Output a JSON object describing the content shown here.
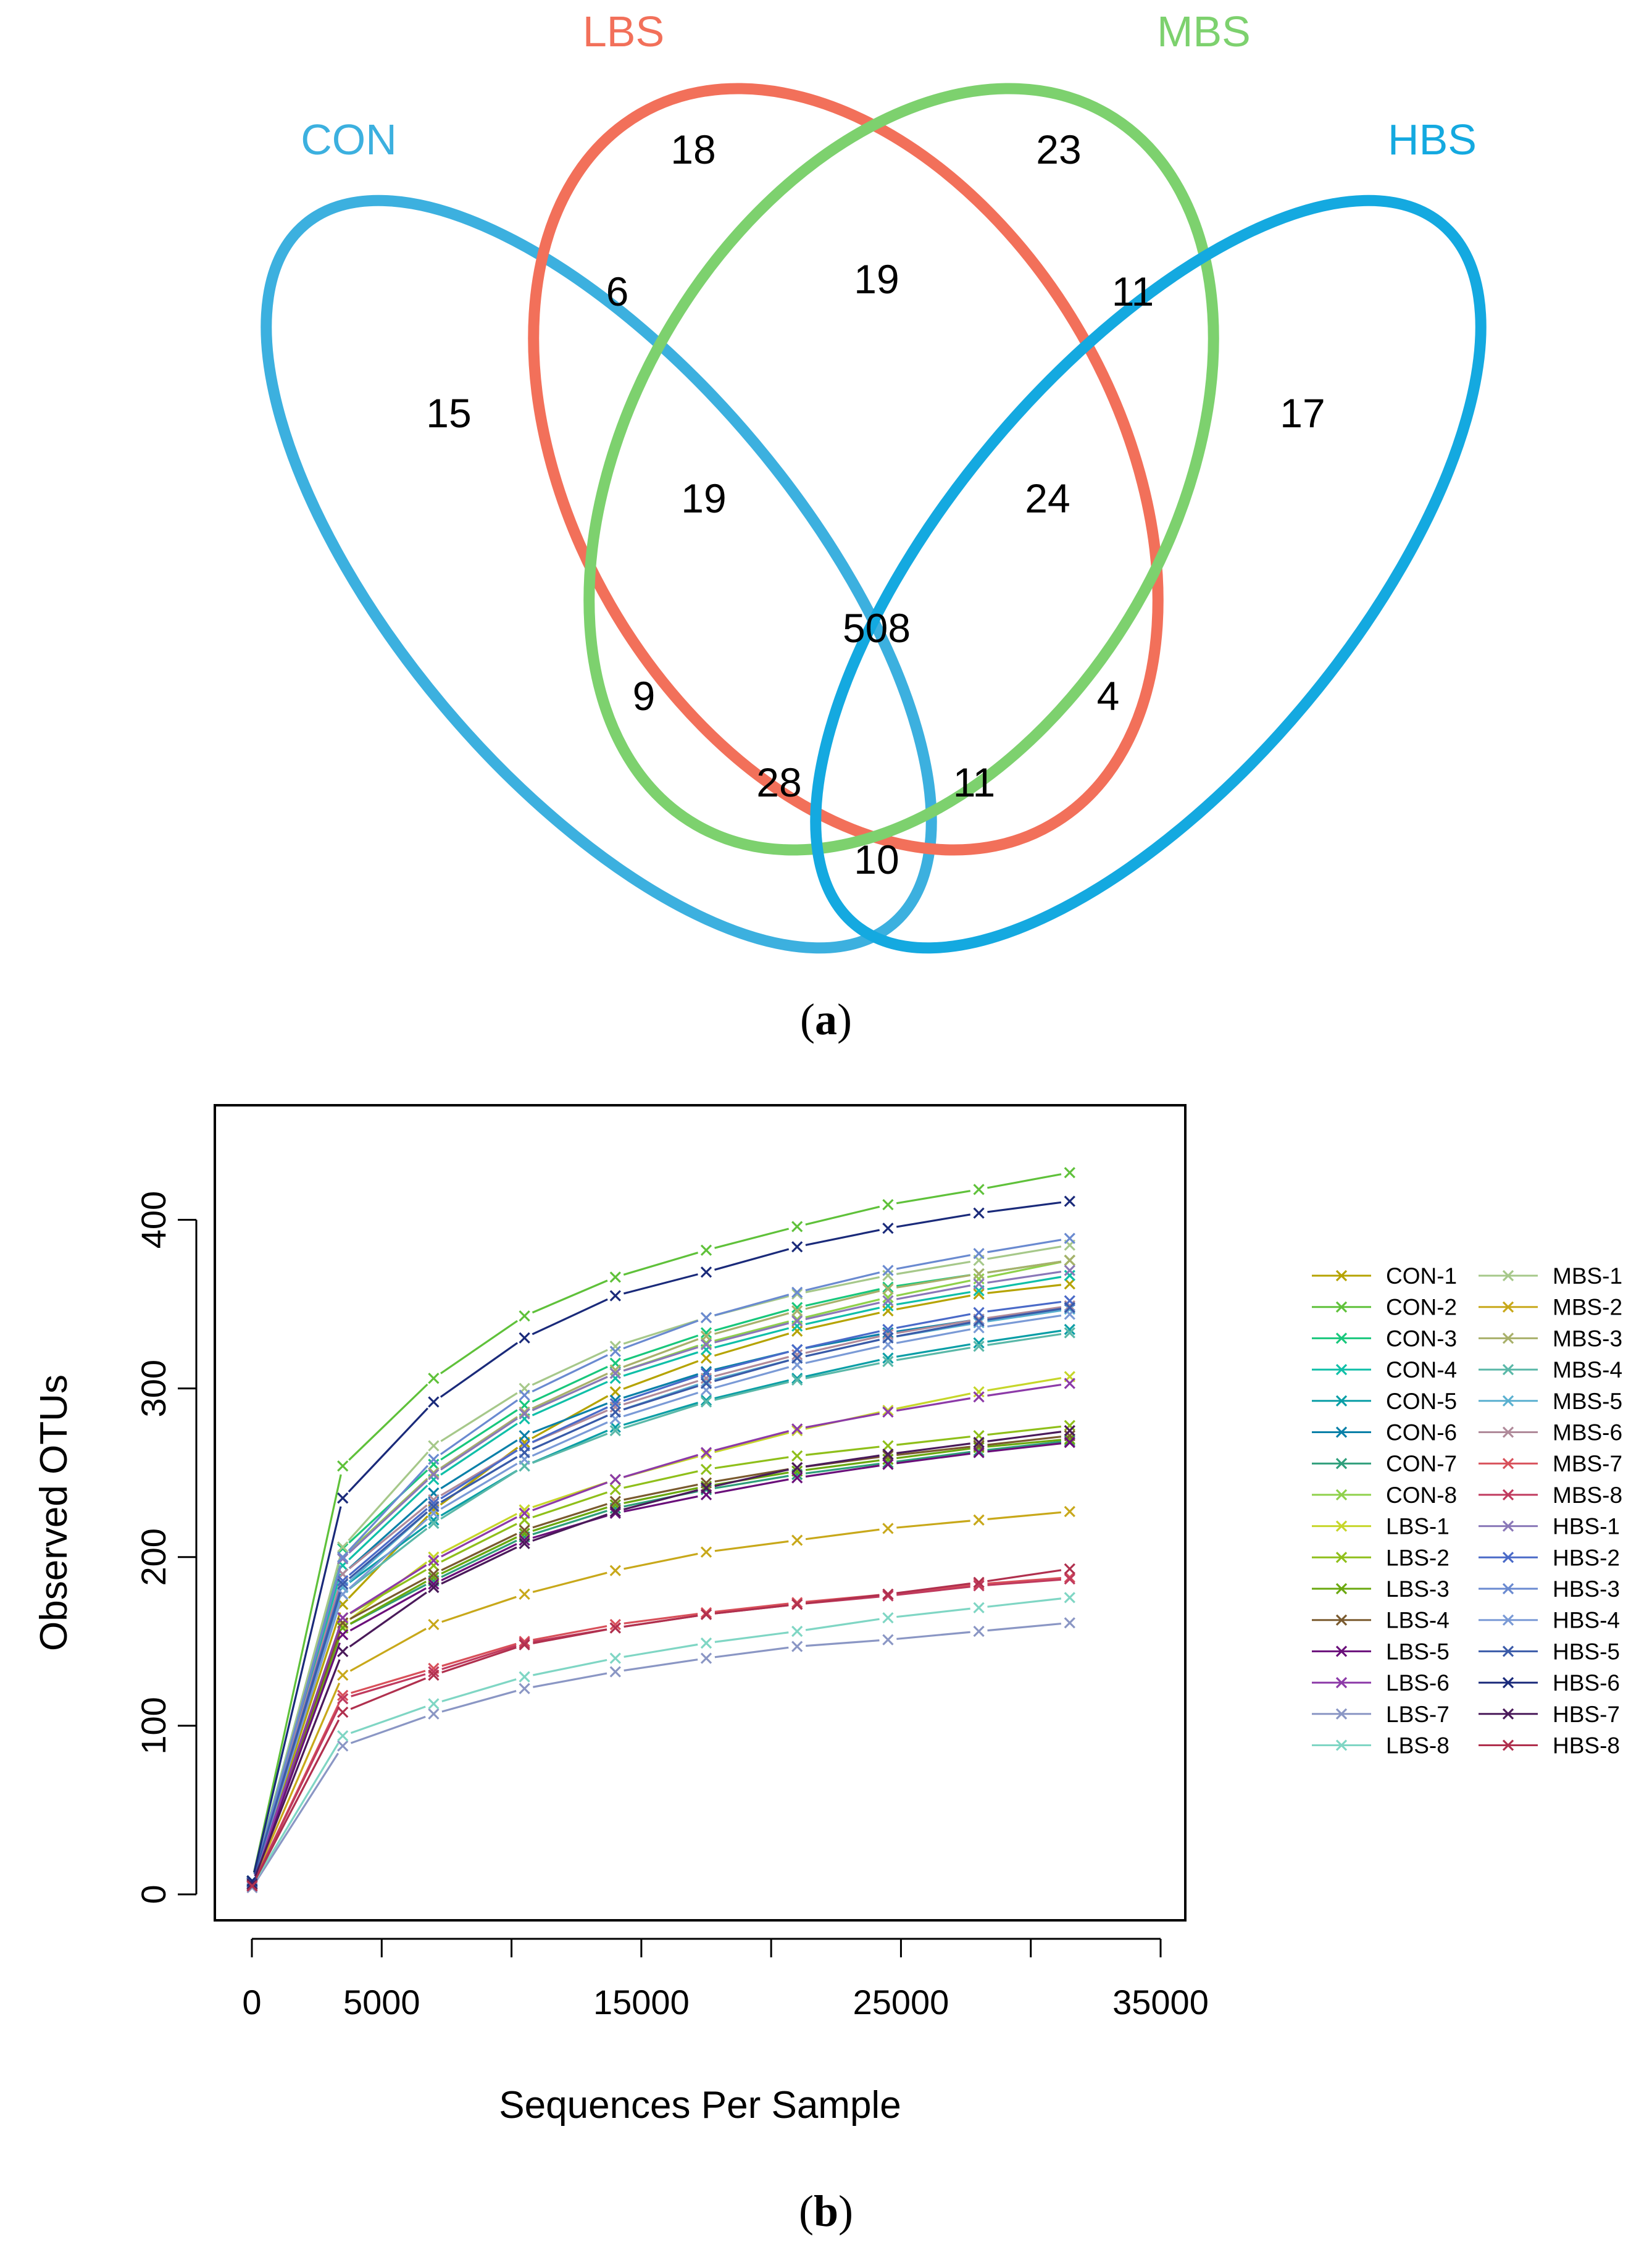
{
  "venn": {
    "panel_label": {
      "open": "(",
      "letter": "a",
      "close": ")"
    },
    "sets": [
      {
        "name": "CON",
        "color": "#3cb0df"
      },
      {
        "name": "LBS",
        "color": "#f2705a"
      },
      {
        "name": "MBS",
        "color": "#7dd16e"
      },
      {
        "name": "HBS",
        "color": "#14a9e0"
      }
    ],
    "regions": {
      "CON_only": "15",
      "LBS_only": "18",
      "MBS_only": "23",
      "HBS_only": "17",
      "CON_LBS": "6",
      "LBS_MBS": "19",
      "MBS_HBS": "11",
      "CON_LBS_MBS": "19",
      "LBS_MBS_HBS": "24",
      "CON_LBS_MBS_HBS": "508",
      "CON_MBS": "9",
      "LBS_HBS": "4",
      "CON_MBS_HBS": "28",
      "CON_LBS_HBS": "11",
      "CON_HBS": "10"
    }
  },
  "rarefaction": {
    "panel_label": {
      "open": "(",
      "letter": "b",
      "close": ")"
    }
  },
  "chart_data": {
    "type": "line",
    "xlabel": "Sequences Per Sample",
    "ylabel": "Observed OTUs",
    "xlim": [
      0,
      35000
    ],
    "ylim": [
      0,
      450
    ],
    "xticks": [
      0,
      5000,
      10000,
      15000,
      20000,
      25000,
      30000,
      35000
    ],
    "xtick_labels": [
      "0",
      "5000",
      "",
      "15000",
      "",
      "25000",
      "",
      "35000"
    ],
    "yticks": [
      0,
      100,
      200,
      300,
      400
    ],
    "ytick_labels": [
      "0",
      "100",
      "200",
      "300",
      "400"
    ],
    "legend_placement": "right",
    "x": [
      10,
      3500,
      7000,
      10500,
      14000,
      17500,
      21000,
      24500,
      28000,
      31500
    ],
    "series": [
      {
        "name": "CON-1",
        "color": "#b5a300",
        "values": [
          7,
          172,
          228,
          268,
          298,
          318,
          334,
          346,
          356,
          362
        ]
      },
      {
        "name": "CON-2",
        "color": "#5fc13a",
        "values": [
          8,
          254,
          306,
          343,
          366,
          382,
          396,
          409,
          418,
          428
        ]
      },
      {
        "name": "CON-3",
        "color": "#18c77c",
        "values": [
          8,
          205,
          255,
          290,
          315,
          333,
          348,
          360,
          368,
          376
        ]
      },
      {
        "name": "CON-4",
        "color": "#0fbfa8",
        "values": [
          8,
          195,
          246,
          282,
          306,
          323,
          337,
          349,
          358,
          367
        ]
      },
      {
        "name": "CON-5",
        "color": "#0a9ea6",
        "values": [
          7,
          182,
          222,
          254,
          277,
          293,
          306,
          318,
          327,
          335
        ]
      },
      {
        "name": "CON-6",
        "color": "#0a80a8",
        "values": [
          8,
          190,
          238,
          272,
          293,
          310,
          323,
          333,
          341,
          348
        ]
      },
      {
        "name": "CON-7",
        "color": "#2e9e7a",
        "values": [
          6,
          158,
          186,
          212,
          229,
          240,
          249,
          256,
          263,
          269
        ]
      },
      {
        "name": "CON-8",
        "color": "#8fd14b",
        "values": [
          7,
          200,
          250,
          285,
          309,
          327,
          341,
          354,
          365,
          376
        ]
      },
      {
        "name": "LBS-1",
        "color": "#c6d62a",
        "values": [
          7,
          160,
          200,
          228,
          246,
          261,
          275,
          287,
          298,
          307
        ]
      },
      {
        "name": "LBS-2",
        "color": "#8fbf1a",
        "values": [
          7,
          164,
          195,
          222,
          240,
          252,
          260,
          266,
          272,
          278
        ]
      },
      {
        "name": "LBS-3",
        "color": "#6aa80f",
        "values": [
          7,
          158,
          188,
          214,
          231,
          242,
          251,
          258,
          265,
          270
        ]
      },
      {
        "name": "LBS-4",
        "color": "#7a5a2e",
        "values": [
          7,
          161,
          190,
          216,
          233,
          244,
          253,
          260,
          266,
          272
        ]
      },
      {
        "name": "LBS-5",
        "color": "#6a0f7a",
        "values": [
          6,
          154,
          184,
          210,
          226,
          237,
          247,
          255,
          262,
          268
        ]
      },
      {
        "name": "LBS-6",
        "color": "#8c3aa8",
        "values": [
          6,
          164,
          198,
          226,
          246,
          262,
          276,
          286,
          295,
          303
        ]
      },
      {
        "name": "LBS-7",
        "color": "#8a96c4",
        "values": [
          4,
          88,
          107,
          122,
          132,
          140,
          147,
          151,
          156,
          161
        ]
      },
      {
        "name": "LBS-8",
        "color": "#7fd6c4",
        "values": [
          5,
          94,
          113,
          129,
          140,
          149,
          156,
          164,
          170,
          176
        ]
      },
      {
        "name": "MBS-1",
        "color": "#a6c88a",
        "values": [
          7,
          206,
          266,
          300,
          325,
          342,
          356,
          367,
          376,
          385
        ]
      },
      {
        "name": "MBS-2",
        "color": "#c8a81a",
        "values": [
          6,
          130,
          160,
          178,
          192,
          203,
          210,
          217,
          222,
          227
        ]
      },
      {
        "name": "MBS-3",
        "color": "#a8b06a",
        "values": [
          7,
          199,
          250,
          286,
          311,
          331,
          346,
          359,
          368,
          376
        ]
      },
      {
        "name": "MBS-4",
        "color": "#5ab8a8",
        "values": [
          7,
          178,
          220,
          254,
          275,
          292,
          305,
          316,
          325,
          333
        ]
      },
      {
        "name": "MBS-5",
        "color": "#5ab0d0",
        "values": [
          7,
          182,
          230,
          262,
          286,
          304,
          318,
          330,
          339,
          347
        ]
      },
      {
        "name": "MBS-6",
        "color": "#b08a9a",
        "values": [
          7,
          190,
          234,
          266,
          289,
          306,
          320,
          332,
          341,
          349
        ]
      },
      {
        "name": "MBS-7",
        "color": "#d8505a",
        "values": [
          5,
          118,
          134,
          150,
          160,
          167,
          173,
          178,
          184,
          188
        ]
      },
      {
        "name": "MBS-8",
        "color": "#c03a5e",
        "values": [
          5,
          116,
          132,
          149,
          158,
          166,
          172,
          177,
          183,
          187
        ]
      },
      {
        "name": "HBS-1",
        "color": "#8a78b8",
        "values": [
          7,
          199,
          249,
          285,
          309,
          326,
          340,
          352,
          362,
          370
        ]
      },
      {
        "name": "HBS-2",
        "color": "#4a6ac8",
        "values": [
          7,
          186,
          232,
          266,
          291,
          309,
          323,
          335,
          345,
          352
        ]
      },
      {
        "name": "HBS-3",
        "color": "#6a8ad0",
        "values": [
          7,
          200,
          258,
          296,
          322,
          342,
          357,
          370,
          380,
          389
        ]
      },
      {
        "name": "HBS-4",
        "color": "#7a9ad6",
        "values": [
          7,
          178,
          226,
          258,
          282,
          299,
          314,
          326,
          336,
          344
        ]
      },
      {
        "name": "HBS-5",
        "color": "#3a5aa8",
        "values": [
          7,
          184,
          230,
          262,
          286,
          303,
          318,
          330,
          340,
          348
        ]
      },
      {
        "name": "HBS-6",
        "color": "#1a2a7a",
        "values": [
          8,
          235,
          292,
          330,
          355,
          369,
          384,
          395,
          404,
          411
        ]
      },
      {
        "name": "HBS-7",
        "color": "#4a1a5a",
        "values": [
          6,
          144,
          182,
          208,
          227,
          241,
          253,
          261,
          268,
          275
        ]
      },
      {
        "name": "HBS-8",
        "color": "#b0304e",
        "values": [
          5,
          108,
          130,
          148,
          158,
          166,
          172,
          178,
          185,
          193
        ]
      }
    ]
  }
}
